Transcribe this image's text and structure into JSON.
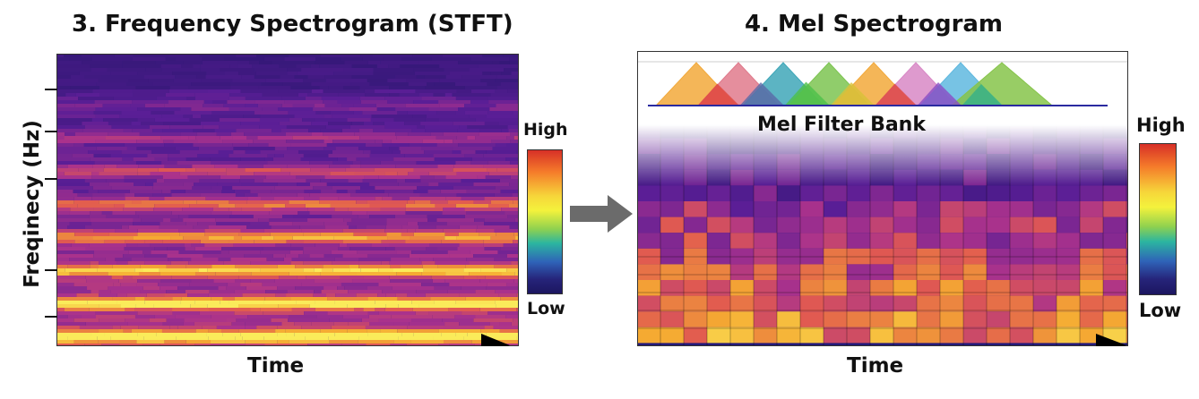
{
  "left_panel": {
    "title": "3. Frequency Spectrogram (STFT)",
    "y_label": "Freqinecy (Hz)",
    "x_label": "Time",
    "colorbar": {
      "high": "High",
      "low": "Low"
    }
  },
  "right_panel": {
    "title": "4. Mel Spectrogram",
    "filter_bank_label": "Mel Filter Bank",
    "x_label": "Time",
    "colorbar": {
      "high": "High",
      "low": "Low"
    },
    "filter_colors": [
      "#f2a93b",
      "#e07a8c",
      "#3fa7b8",
      "#7cc451",
      "#f2a93b",
      "#d888c6",
      "#5fb8df",
      "#86c44a"
    ],
    "overlap_colors": [
      "#e0453c",
      "#5a6aa8",
      "#4cc04a",
      "#d8c23a",
      "#e0453c",
      "#8a4cc4",
      "#34b08a"
    ]
  },
  "colors": {
    "spectrogram_base": "#2c1a78",
    "arrow": "#6b6b6b"
  }
}
